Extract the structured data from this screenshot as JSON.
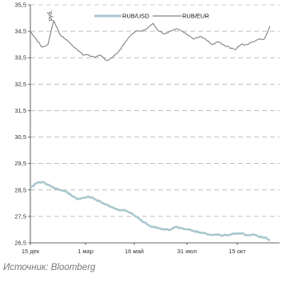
{
  "chart_data": {
    "type": "line",
    "unit_label": "руб.",
    "x_ticks": [
      "15 дек",
      "1 мар",
      "16 май",
      "31 июл",
      "15 окт"
    ],
    "ylim": [
      26.5,
      35.5
    ],
    "y_ticks": [
      "26,5",
      "27,5",
      "28,5",
      "29,5",
      "30,5",
      "31,5",
      "32,5",
      "33,5",
      "34,5",
      "35,5"
    ],
    "grid": "horizontal-dashed",
    "legend_position": "top",
    "series": [
      {
        "name": "RUB/USD",
        "color": "#a9c7cf",
        "values": [
          28.6,
          28.75,
          28.8,
          28.7,
          28.6,
          28.5,
          28.45,
          28.3,
          28.15,
          28.2,
          28.25,
          28.15,
          28.05,
          27.95,
          27.85,
          27.75,
          27.75,
          27.65,
          27.5,
          27.35,
          27.2,
          27.1,
          27.05,
          27.0,
          27.0,
          27.1,
          27.05,
          27.0,
          26.95,
          26.9,
          26.85,
          26.8,
          26.82,
          26.78,
          26.8,
          26.85,
          26.85,
          26.8,
          26.82,
          26.75,
          26.7,
          26.6
        ]
      },
      {
        "name": "RUB/EUR",
        "color": "#808080",
        "values": [
          34.5,
          34.2,
          33.9,
          34.0,
          34.9,
          34.4,
          34.2,
          34.0,
          33.8,
          33.6,
          33.6,
          33.5,
          33.6,
          33.4,
          33.5,
          33.7,
          34.0,
          34.3,
          34.5,
          34.5,
          34.6,
          34.8,
          34.5,
          34.4,
          34.5,
          34.6,
          34.5,
          34.35,
          34.2,
          34.3,
          34.2,
          34.0,
          34.1,
          34.0,
          33.9,
          33.8,
          34.0,
          34.0,
          34.1,
          34.2,
          34.2,
          34.7
        ]
      }
    ]
  },
  "source": "Источник: Bloomberg"
}
